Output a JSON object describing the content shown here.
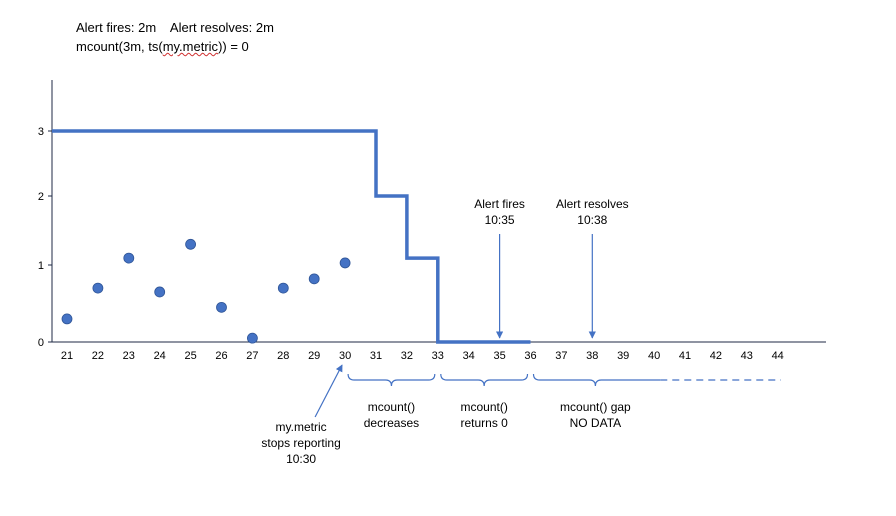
{
  "header": {
    "line1": "Alert fires: 2m    Alert resolves: 2m",
    "line2_prefix": "mcount(3m, ts(",
    "line2_metric": "my.metric",
    "line2_suffix": ")) = 0"
  },
  "chart_data": {
    "type": "line",
    "title": "",
    "xlabel": "",
    "ylabel": "",
    "xlim": [
      20.4,
      46.2
    ],
    "ylim": [
      0,
      3.7
    ],
    "x_ticks": [
      21,
      22,
      23,
      24,
      25,
      26,
      27,
      28,
      29,
      30,
      31,
      32,
      33,
      34,
      35,
      36,
      37,
      38,
      39,
      40,
      41,
      42,
      43,
      44
    ],
    "y_ticks": [
      0,
      1,
      2,
      3
    ],
    "grid": false,
    "colors": {
      "series": "#4472c4",
      "axis": "#1f2a44"
    },
    "series": [
      {
        "name": "",
        "kind": "scatter",
        "points": [
          {
            "x": 21,
            "y": 0.3
          },
          {
            "x": 22,
            "y": 0.7
          },
          {
            "x": 23,
            "y": 1.1
          },
          {
            "x": 24,
            "y": 0.65
          },
          {
            "x": 25,
            "y": 1.3
          },
          {
            "x": 26,
            "y": 0.45
          },
          {
            "x": 27,
            "y": 0.05
          },
          {
            "x": 28,
            "y": 0.7
          },
          {
            "x": 29,
            "y": 0.82
          },
          {
            "x": 30,
            "y": 1.03
          }
        ]
      },
      {
        "name": "",
        "kind": "step",
        "points": [
          {
            "x": 20.4,
            "y": 3
          },
          {
            "x": 31,
            "y": 3
          },
          {
            "x": 31,
            "y": 2
          },
          {
            "x": 32,
            "y": 2
          },
          {
            "x": 32,
            "y": 1.1
          },
          {
            "x": 33,
            "y": 1.1
          },
          {
            "x": 33,
            "y": 0
          },
          {
            "x": 36,
            "y": 0
          }
        ]
      },
      {
        "name": "",
        "kind": "dashed",
        "points": [
          {
            "x": 36,
            "y": 0
          },
          {
            "x": 44,
            "y": 0
          }
        ]
      }
    ],
    "annotations": [
      {
        "text": [
          "Alert fires",
          "10:35"
        ],
        "x": 35
      },
      {
        "text": [
          "Alert resolves",
          "10:38"
        ],
        "x": 38
      }
    ],
    "stop_note": {
      "text": [
        "my.metric",
        "stops reporting",
        "10:30"
      ],
      "x": 30
    },
    "braces": [
      {
        "from": 30,
        "to": 33,
        "text": [
          "mcount()",
          "decreases"
        ],
        "dashed_tail": false
      },
      {
        "from": 33,
        "to": 36,
        "text": [
          "mcount()",
          "returns 0"
        ],
        "dashed_tail": false
      },
      {
        "from": 36,
        "to": 44,
        "text": [
          "mcount() gap",
          "NO DATA"
        ],
        "dashed_tail": true
      }
    ]
  }
}
